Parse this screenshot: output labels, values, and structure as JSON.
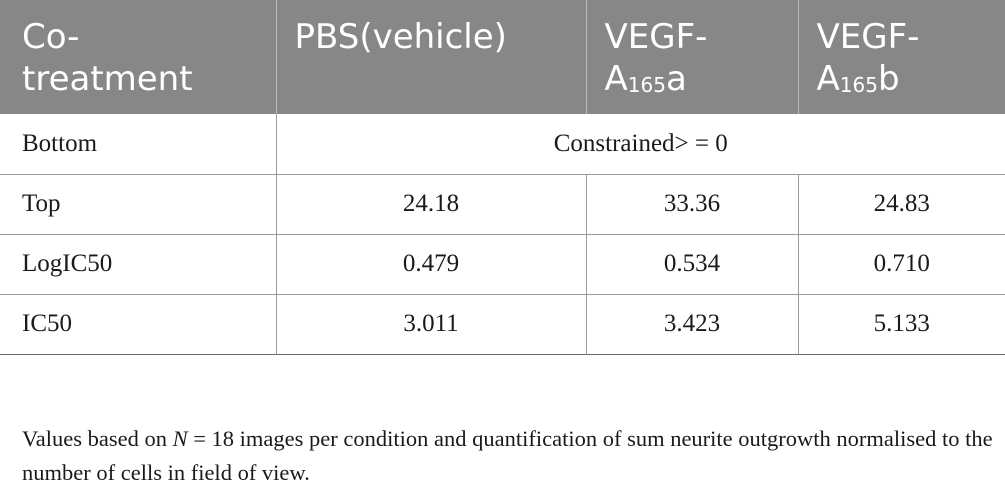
{
  "table": {
    "headers": [
      {
        "line1": "Co-",
        "line2": "treatment"
      },
      {
        "line1": "PBS(vehicle)",
        "line2": ""
      },
      {
        "line1": "VEGF-",
        "base": "A",
        "sub": "165",
        "suffix": "a"
      },
      {
        "line1": "VEGF-",
        "base": "A",
        "sub": "165",
        "suffix": "b"
      }
    ],
    "bottom_row": {
      "label": "Bottom",
      "value": "Constrained> = 0"
    },
    "rows": [
      {
        "label": "Top",
        "values": [
          "24.18",
          "33.36",
          "24.83"
        ]
      },
      {
        "label": "LogIC50",
        "values": [
          "0.479",
          "0.534",
          "0.710"
        ]
      },
      {
        "label": "IC50",
        "values": [
          "3.011",
          "3.423",
          "5.133"
        ]
      }
    ]
  },
  "footnote": {
    "part1": "Values based on ",
    "italic": "N",
    "part2": " = 18 images per condition and quantification of sum neurite outgrowth normalised to the number of cells in field of view."
  }
}
